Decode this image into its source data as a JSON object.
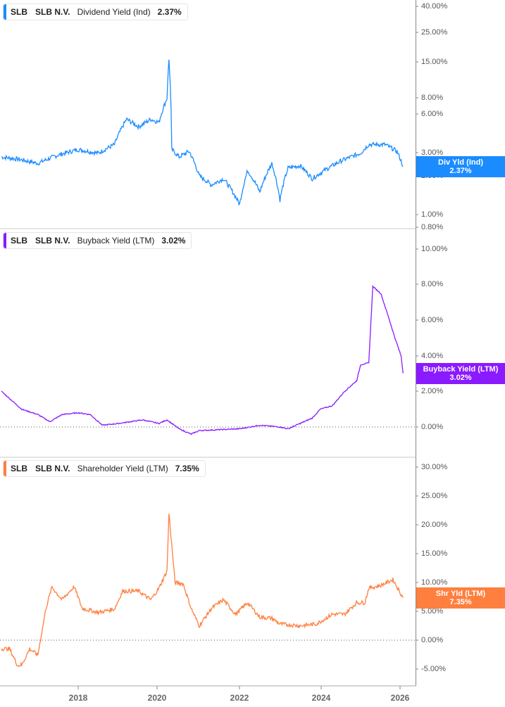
{
  "panels": [
    {
      "ticker": "SLB",
      "company": "SLB N.V.",
      "metric": "Dividend Yield (Ind)",
      "value": "2.37%",
      "color": "#1a8cff",
      "last_label": "Div Yld (Ind)",
      "last_value": "2.37%",
      "y_ticks": [
        "40.00%",
        "25.00%",
        "15.00%",
        "8.00%",
        "6.00%",
        "3.00%",
        "2.00%",
        "1.00%",
        "0.80%"
      ]
    },
    {
      "ticker": "SLB",
      "company": "SLB N.V.",
      "metric": "Buyback Yield (LTM)",
      "value": "3.02%",
      "color": "#8a1aff",
      "last_label": "Buyback Yield (LTM)",
      "last_value": "3.02%",
      "y_ticks": [
        "10.00%",
        "8.00%",
        "6.00%",
        "4.00%",
        "2.00%",
        "0.00%"
      ]
    },
    {
      "ticker": "SLB",
      "company": "SLB N.V.",
      "metric": "Shareholder Yield (LTM)",
      "value": "7.35%",
      "color": "#ff7f3f",
      "last_label": "Shr Yld (LTM)",
      "last_value": "7.35%",
      "y_ticks": [
        "30.00%",
        "25.00%",
        "20.00%",
        "15.00%",
        "10.00%",
        "5.00%",
        "0.00%",
        "-5.00%"
      ]
    }
  ],
  "x_axis": {
    "ticks": [
      "2018",
      "2020",
      "2022",
      "2024",
      "2026"
    ]
  },
  "chart_data": [
    {
      "type": "line",
      "title": "SLB N.V. Dividend Yield (Ind)",
      "yscale": "log",
      "ylabel": "Dividend Yield (%)",
      "ylim": [
        0.8,
        40
      ],
      "y_ticks": [
        40,
        25,
        15,
        8,
        6,
        3,
        2,
        1,
        0.8
      ],
      "x_ticks": [
        2018,
        2020,
        2022,
        2024,
        2026
      ],
      "x": [
        2016.1,
        2016.5,
        2017.0,
        2017.5,
        2018.0,
        2018.5,
        2018.9,
        2019.2,
        2019.5,
        2019.8,
        2020.0,
        2020.2,
        2020.25,
        2020.32,
        2020.5,
        2020.75,
        2021.0,
        2021.3,
        2021.6,
        2022.0,
        2022.2,
        2022.5,
        2022.8,
        2023.0,
        2023.2,
        2023.5,
        2023.8,
        2024.0,
        2024.5,
        2025.0,
        2025.2,
        2025.6,
        2025.9,
        2026.05
      ],
      "series": [
        {
          "name": "Dividend Yield (Ind)",
          "values": [
            2.8,
            2.7,
            2.5,
            2.9,
            3.2,
            3.0,
            3.5,
            5.5,
            4.8,
            5.5,
            5.2,
            8.0,
            16.0,
            3.2,
            2.8,
            3.1,
            2.0,
            1.7,
            1.9,
            1.2,
            2.2,
            1.5,
            2.5,
            1.3,
            2.3,
            2.4,
            1.9,
            2.1,
            2.6,
            3.0,
            3.5,
            3.5,
            3.1,
            2.37
          ]
        }
      ]
    },
    {
      "type": "line",
      "title": "SLB N.V. Buyback Yield (LTM)",
      "ylabel": "Buyback Yield (%)",
      "ylim": [
        -1,
        11
      ],
      "y_ticks": [
        10,
        8,
        6,
        4,
        2,
        0
      ],
      "x_ticks": [
        2018,
        2020,
        2022,
        2024,
        2026
      ],
      "x": [
        2016.1,
        2016.3,
        2016.6,
        2017.0,
        2017.3,
        2017.6,
        2018.0,
        2018.3,
        2018.6,
        2019.0,
        2019.3,
        2019.6,
        2020.0,
        2020.2,
        2020.5,
        2020.8,
        2021.0,
        2021.5,
        2022.0,
        2022.5,
        2023.0,
        2023.2,
        2023.5,
        2023.8,
        2024.0,
        2024.3,
        2024.6,
        2024.9,
        2025.0,
        2025.2,
        2025.3,
        2025.5,
        2025.7,
        2025.85,
        2026.0,
        2026.05
      ],
      "series": [
        {
          "name": "Buyback Yield (LTM)",
          "values": [
            2.0,
            1.6,
            1.0,
            0.7,
            0.3,
            0.7,
            0.8,
            0.7,
            0.1,
            0.2,
            0.3,
            0.4,
            0.2,
            0.4,
            -0.1,
            -0.4,
            -0.2,
            -0.15,
            -0.1,
            0.1,
            0.0,
            -0.1,
            0.2,
            0.5,
            1.0,
            1.2,
            2.0,
            2.6,
            3.5,
            3.6,
            7.9,
            7.5,
            6.1,
            5.0,
            4.0,
            3.02
          ]
        }
      ]
    },
    {
      "type": "line",
      "title": "SLB N.V. Shareholder Yield (LTM)",
      "ylabel": "Shareholder Yield (%)",
      "ylim": [
        -6,
        31
      ],
      "y_ticks": [
        30,
        25,
        20,
        15,
        10,
        5,
        0,
        -5
      ],
      "x_ticks": [
        2018,
        2020,
        2022,
        2024,
        2026
      ],
      "x": [
        2016.1,
        2016.3,
        2016.5,
        2016.6,
        2016.8,
        2017.0,
        2017.2,
        2017.35,
        2017.6,
        2017.9,
        2018.1,
        2018.5,
        2018.9,
        2019.1,
        2019.5,
        2019.8,
        2020.0,
        2020.2,
        2020.25,
        2020.4,
        2020.6,
        2020.8,
        2021.0,
        2021.3,
        2021.6,
        2021.9,
        2022.2,
        2022.5,
        2022.8,
        2023.0,
        2023.5,
        2023.9,
        2024.3,
        2024.6,
        2024.9,
        2025.1,
        2025.2,
        2025.5,
        2025.8,
        2026.05
      ],
      "series": [
        {
          "name": "Shareholder Yield (LTM)",
          "values": [
            -1.5,
            -1.5,
            -4.4,
            -4.3,
            -1.5,
            -2.6,
            5.5,
            9.2,
            7.0,
            9.3,
            5.5,
            4.8,
            5.4,
            8.5,
            8.5,
            7.0,
            9.0,
            12.0,
            22.0,
            10.0,
            9.8,
            5.5,
            2.5,
            5.5,
            7.0,
            4.5,
            6.5,
            4.0,
            3.8,
            2.8,
            2.5,
            2.8,
            4.5,
            4.5,
            6.5,
            6.5,
            9.0,
            9.5,
            10.5,
            7.35
          ]
        }
      ]
    }
  ]
}
